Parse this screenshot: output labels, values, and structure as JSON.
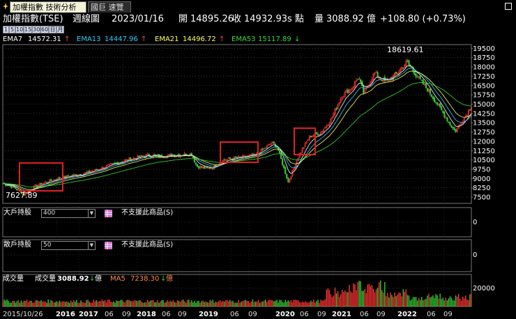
{
  "tabs": [
    {
      "label": "加權指數 技術分析",
      "active": true
    },
    {
      "label": "國巨 速覽",
      "active": false
    }
  ],
  "header": {
    "name": "加權指數(TSE)",
    "period": "週線圖",
    "date": "2023/01/16",
    "open_label": "開",
    "open": "14895.26",
    "close_label": "收",
    "close": "14932.93",
    "close_suffix": "s 點",
    "volume_label": "量",
    "volume": "3088.92 億",
    "change": "+108.80 (+0.73%)"
  },
  "period_buttons": [
    "1",
    "5",
    "10",
    "15",
    "30",
    "60",
    "日",
    "月"
  ],
  "ema": [
    {
      "label": "EMA7",
      "value": "14572.31",
      "dir": "up",
      "color": "#ffffff"
    },
    {
      "label": "EMA13",
      "value": "14447.96",
      "dir": "up",
      "color": "#33ccff"
    },
    {
      "label": "EMA21",
      "value": "14496.72",
      "dir": "up",
      "color": "#ffff66"
    },
    {
      "label": "EMA53",
      "value": "15117.89",
      "dir": "down",
      "color": "#33dd33"
    }
  ],
  "price_axis": [
    "19500",
    "18750",
    "18000",
    "17250",
    "16500",
    "15750",
    "15000",
    "14250",
    "13500",
    "12750",
    "12000",
    "11250",
    "10500",
    "9750",
    "9000",
    "8250",
    "7500"
  ],
  "annotations": {
    "high": "18619.61",
    "low": "7627.89"
  },
  "panels": {
    "big_holders": {
      "label": "大戶持股",
      "value": "400",
      "message": "不支援此商品(S)",
      "axis": "0"
    },
    "retail_holders": {
      "label": "散戶持股",
      "value": "50",
      "message": "不支援此商品(S)",
      "axis": "0"
    },
    "volume": {
      "label": "成交量",
      "vol_label": "成交量",
      "vol_value": "3088.92",
      "vol_unit": "億",
      "ma_label": "MA5",
      "ma_value": "7238.30",
      "ma_unit": "億",
      "axis": "20000"
    }
  },
  "time_axis": [
    "2015/10/26",
    "2016",
    "2017",
    "06",
    "09",
    "2018",
    "06",
    "09",
    "2019",
    "06",
    "09",
    "2020",
    "06",
    "09",
    "2021",
    "06",
    "09",
    "2022",
    "06",
    "09"
  ],
  "colors": {
    "up": "#ff3333",
    "down": "#33cc33",
    "highlight": "#e02020",
    "grid": "#555555"
  },
  "chart_data": {
    "type": "candlestick",
    "y_range": [
      7000,
      19800
    ],
    "x_range": [
      "2015/10",
      "2023/01"
    ],
    "highlights": [
      "2016 early uptrend",
      "2019 consolidation",
      "2020 post-crash breakout"
    ],
    "close_path": [
      [
        "2015/10",
        8600
      ],
      [
        "2015/12",
        8300
      ],
      [
        "2016/02",
        7700
      ],
      [
        "2016/04",
        8400
      ],
      [
        "2016/06",
        8700
      ],
      [
        "2016/09",
        9100
      ],
      [
        "2017/01",
        9400
      ],
      [
        "2017/04",
        9800
      ],
      [
        "2017/06",
        10100
      ],
      [
        "2017/09",
        10500
      ],
      [
        "2018/01",
        10900
      ],
      [
        "2018/03",
        10800
      ],
      [
        "2018/06",
        10900
      ],
      [
        "2018/09",
        11000
      ],
      [
        "2018/10",
        10000
      ],
      [
        "2018/12",
        9800
      ],
      [
        "2019/01",
        9900
      ],
      [
        "2019/03",
        10500
      ],
      [
        "2019/06",
        10700
      ],
      [
        "2019/09",
        10900
      ],
      [
        "2019/12",
        11900
      ],
      [
        "2020/01",
        11500
      ],
      [
        "2020/03",
        8700
      ],
      [
        "2020/05",
        10900
      ],
      [
        "2020/07",
        12400
      ],
      [
        "2020/09",
        12700
      ],
      [
        "2020/11",
        13800
      ],
      [
        "2021/01",
        15700
      ],
      [
        "2021/03",
        16400
      ],
      [
        "2021/04",
        17200
      ],
      [
        "2021/05",
        15900
      ],
      [
        "2021/07",
        17500
      ],
      [
        "2021/09",
        16800
      ],
      [
        "2021/11",
        17400
      ],
      [
        "2022/01",
        18400
      ],
      [
        "2022/03",
        17200
      ],
      [
        "2022/05",
        16100
      ],
      [
        "2022/07",
        14800
      ],
      [
        "2022/09",
        13400
      ],
      [
        "2022/10",
        12800
      ],
      [
        "2022/12",
        14100
      ],
      [
        "2023/01",
        14900
      ]
    ]
  }
}
